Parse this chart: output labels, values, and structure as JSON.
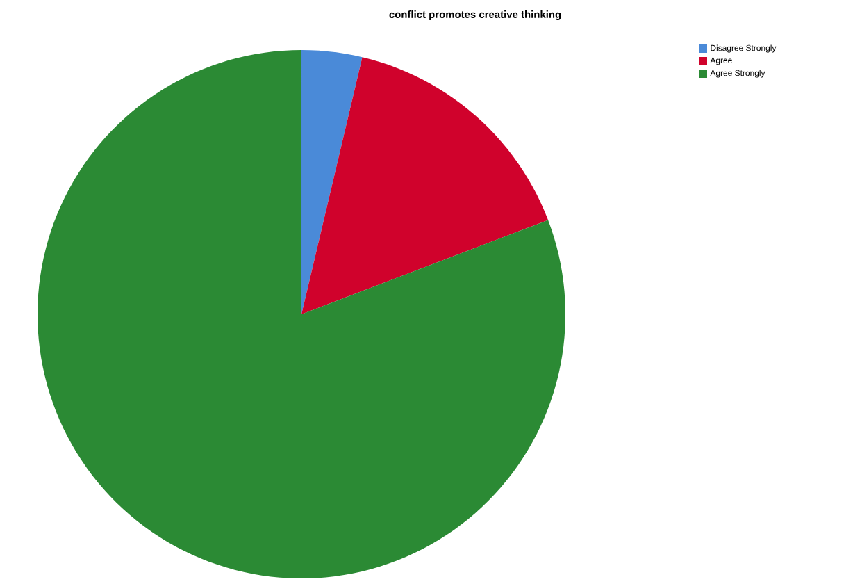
{
  "chart_data": {
    "type": "pie",
    "title": "conflict promotes creative thinking",
    "categories": [
      "Disagree Strongly",
      "Agree",
      "Agree Strongly"
    ],
    "values": [
      3.7,
      15.5,
      80.8
    ],
    "colors": [
      "#4a8ad8",
      "#d0022c",
      "#2b8a34"
    ],
    "legend": "top right"
  }
}
